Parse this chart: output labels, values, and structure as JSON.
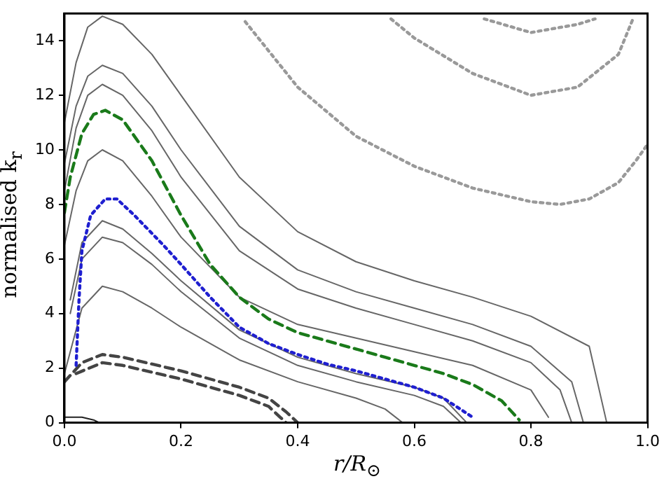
{
  "chart_data": {
    "type": "line",
    "xlabel": "r/R$_{⊙}$",
    "ylabel": "normalised k$_{r}$",
    "xlim": [
      0,
      1
    ],
    "ylim": [
      0,
      15
    ],
    "xticks": [
      {
        "value": 0,
        "label": "0.0"
      },
      0.2,
      0.4,
      0.6,
      0.8,
      {
        "value": 1,
        "label": "1.0"
      }
    ],
    "yticks": [
      0,
      2,
      4,
      6,
      8,
      10,
      12,
      14
    ],
    "grid": false,
    "legend": false,
    "marker": "none",
    "series": [
      {
        "color": "#666666",
        "line_style": "solid",
        "x": [
          0,
          0.02,
          0.04,
          0.065,
          0.1,
          0.15,
          0.2,
          0.3,
          0.4,
          0.5,
          0.6,
          0.7,
          0.8,
          0.9,
          0.93
        ],
        "values": [
          11,
          13.2,
          14.5,
          14.9,
          14.6,
          13.5,
          12,
          9,
          7,
          5.9,
          5.2,
          4.6,
          3.9,
          2.8,
          0
        ]
      },
      {
        "color": "#666666",
        "line_style": "solid",
        "x": [
          0,
          0.02,
          0.04,
          0.065,
          0.1,
          0.15,
          0.2,
          0.3,
          0.4,
          0.5,
          0.6,
          0.7,
          0.8,
          0.87,
          0.89
        ],
        "values": [
          9.5,
          11.6,
          12.7,
          13.1,
          12.8,
          11.6,
          10,
          7.2,
          5.6,
          4.8,
          4.2,
          3.6,
          2.8,
          1.5,
          0
        ]
      },
      {
        "color": "#666666",
        "line_style": "solid",
        "x": [
          0,
          0.02,
          0.04,
          0.065,
          0.1,
          0.15,
          0.2,
          0.3,
          0.4,
          0.5,
          0.6,
          0.7,
          0.8,
          0.85,
          0.87
        ],
        "values": [
          8.5,
          10.8,
          12,
          12.4,
          12,
          10.7,
          9,
          6.3,
          4.9,
          4.2,
          3.6,
          3,
          2.2,
          1.2,
          0
        ]
      },
      {
        "color": "#1a7a1a",
        "line_style": "dashed",
        "x": [
          0,
          0.01,
          0.03,
          0.05,
          0.07,
          0.1,
          0.15,
          0.2,
          0.25,
          0.3,
          0.35,
          0.4,
          0.45,
          0.5,
          0.55,
          0.6,
          0.65,
          0.7,
          0.75,
          0.78
        ],
        "values": [
          7.7,
          9,
          10.6,
          11.3,
          11.45,
          11.1,
          9.6,
          7.6,
          5.8,
          4.6,
          3.8,
          3.3,
          3,
          2.7,
          2.4,
          2.1,
          1.8,
          1.4,
          0.8,
          0.1
        ]
      },
      {
        "color": "#666666",
        "line_style": "solid",
        "x": [
          0,
          0.02,
          0.04,
          0.065,
          0.1,
          0.15,
          0.2,
          0.3,
          0.4,
          0.5,
          0.6,
          0.7,
          0.8,
          0.83
        ],
        "values": [
          6.5,
          8.5,
          9.6,
          10,
          9.6,
          8.3,
          6.8,
          4.6,
          3.6,
          3.1,
          2.6,
          2.1,
          1.2,
          0.2
        ]
      },
      {
        "color": "#1f1fd0",
        "line_style": "dotted",
        "x": [
          0.02,
          0.025,
          0.03,
          0.045,
          0.07,
          0.09,
          0.12,
          0.17,
          0.2,
          0.25,
          0.3,
          0.35,
          0.4,
          0.45,
          0.5,
          0.55,
          0.6,
          0.65,
          0.7
        ],
        "values": [
          2.1,
          4.5,
          6.3,
          7.6,
          8.2,
          8.2,
          7.6,
          6.5,
          5.8,
          4.6,
          3.5,
          2.9,
          2.5,
          2.15,
          1.9,
          1.6,
          1.3,
          0.9,
          0.2
        ]
      },
      {
        "color": "#666666",
        "line_style": "solid",
        "x": [
          0.01,
          0.03,
          0.065,
          0.1,
          0.15,
          0.2,
          0.3,
          0.4,
          0.5,
          0.6,
          0.65,
          0.69
        ],
        "values": [
          4.5,
          6.6,
          7.4,
          7.1,
          6.2,
          5.2,
          3.4,
          2.4,
          1.8,
          1.3,
          0.9,
          0
        ]
      },
      {
        "color": "#666666",
        "line_style": "solid",
        "x": [
          0.01,
          0.03,
          0.065,
          0.1,
          0.15,
          0.2,
          0.3,
          0.4,
          0.5,
          0.6,
          0.65,
          0.68
        ],
        "values": [
          4,
          6,
          6.8,
          6.6,
          5.8,
          4.8,
          3.1,
          2.1,
          1.5,
          1,
          0.6,
          0
        ]
      },
      {
        "color": "#666666",
        "line_style": "solid",
        "x": [
          0,
          0.03,
          0.065,
          0.1,
          0.15,
          0.2,
          0.3,
          0.4,
          0.5,
          0.55,
          0.58
        ],
        "values": [
          1.8,
          4.2,
          5,
          4.8,
          4.2,
          3.5,
          2.3,
          1.5,
          0.9,
          0.5,
          0
        ]
      },
      {
        "color": "#444444",
        "line_style": "dashed",
        "x": [
          0,
          0.03,
          0.065,
          0.1,
          0.2,
          0.3,
          0.35,
          0.38,
          0.4
        ],
        "values": [
          1.5,
          2.2,
          2.5,
          2.4,
          1.9,
          1.3,
          0.9,
          0.4,
          0
        ]
      },
      {
        "color": "#444444",
        "line_style": "dashed",
        "x": [
          0.02,
          0.065,
          0.1,
          0.2,
          0.3,
          0.35,
          0.37,
          0.38
        ],
        "values": [
          1.8,
          2.2,
          2.1,
          1.6,
          1,
          0.6,
          0.2,
          0
        ]
      },
      {
        "color": "#222222",
        "line_style": "solid",
        "x": [
          0,
          0.03,
          0.05,
          0.06
        ],
        "values": [
          0.2,
          0.2,
          0.1,
          0
        ]
      },
      {
        "color": "#999999",
        "line_style": "dotted",
        "x": [
          0.31,
          0.4,
          0.5,
          0.6,
          0.7,
          0.8,
          0.85,
          0.9,
          0.95,
          0.98,
          1
        ],
        "values": [
          14.7,
          12.3,
          10.5,
          9.4,
          8.6,
          8.1,
          8,
          8.2,
          8.8,
          9.6,
          10.2
        ]
      },
      {
        "color": "#999999",
        "line_style": "dotted",
        "x": [
          0.56,
          0.6,
          0.7,
          0.8,
          0.88,
          0.95,
          0.975
        ],
        "values": [
          14.8,
          14.1,
          12.8,
          12,
          12.3,
          13.5,
          14.8
        ]
      },
      {
        "color": "#999999",
        "line_style": "dotted",
        "x": [
          0.72,
          0.8,
          0.88,
          0.91
        ],
        "values": [
          14.8,
          14.3,
          14.6,
          14.8
        ]
      }
    ]
  }
}
